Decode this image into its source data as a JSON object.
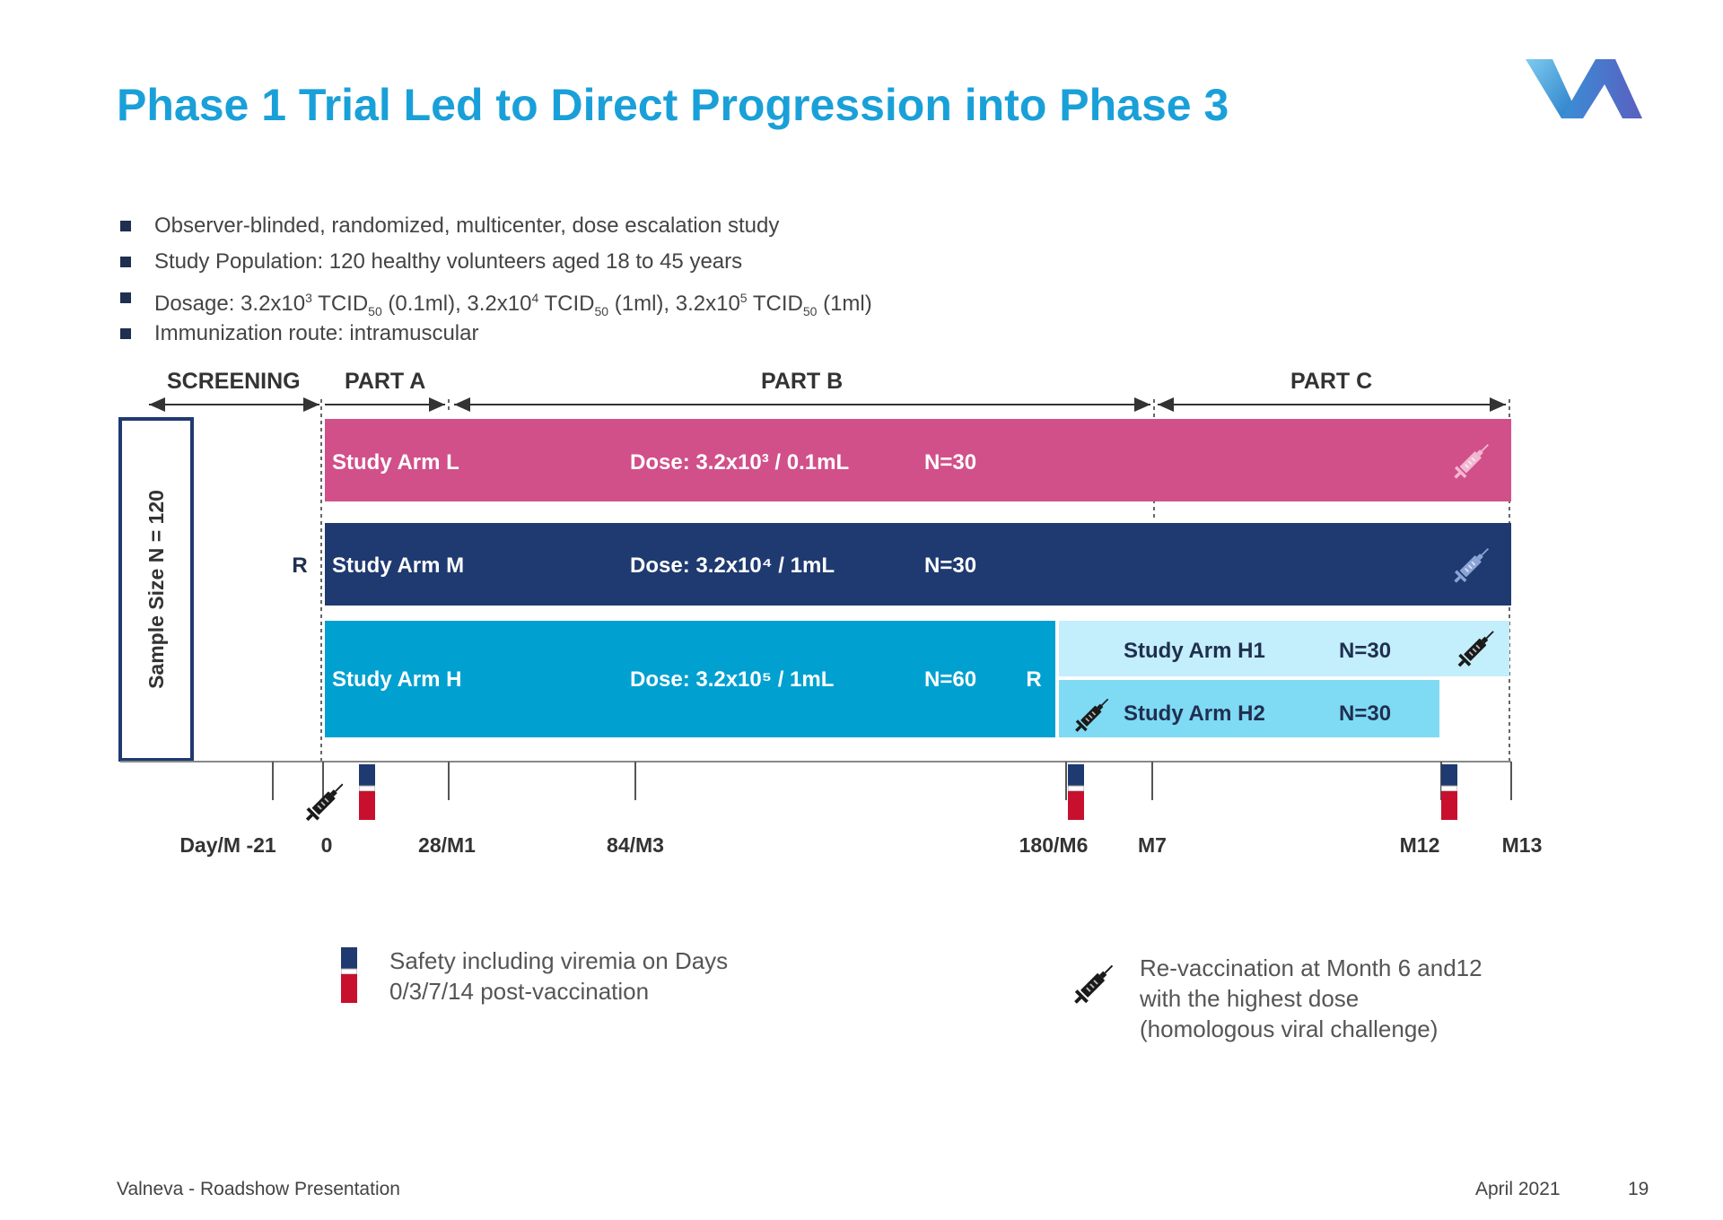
{
  "slide": {
    "title": "Phase 1 Trial Led to Direct Progression into Phase 3",
    "bullets": [
      {
        "html": "Observer-blinded, randomized, multicenter, dose escalation study"
      },
      {
        "html": "Study Population: 120 healthy volunteers aged 18 to 45 years"
      },
      {
        "html": "Dosage: 3.2x10<sup>3</sup> TCID<sub>50</sub> (0.1ml), 3.2x10<sup>4</sup> TCID<sub>50</sub> (1ml), 3.2x10<sup>5</sup> TCID<sub>50</sub> (1ml)"
      },
      {
        "html": "Immunization route: intramuscular"
      }
    ]
  },
  "phases": {
    "screening": "SCREENING",
    "part_a": "PART A",
    "part_b": "PART B",
    "part_c": "PART C"
  },
  "sample_size": "Sample Size N = 120",
  "randomization_label": "R",
  "arms": {
    "L": {
      "name": "Study Arm L",
      "dose": "Dose: 3.2x10³ / 0.1mL",
      "n": "N=30",
      "color": "#d1508a"
    },
    "M": {
      "name": "Study Arm M",
      "dose": "Dose: 3.2x10⁴ / 1mL",
      "n": "N=30",
      "color": "#1f3a70"
    },
    "H": {
      "name": "Study Arm H",
      "dose": "Dose: 3.2x10⁵ / 1mL",
      "n": "N=60",
      "r": "R",
      "color": "#00a0d0"
    },
    "H1": {
      "name": "Study Arm H1",
      "n": "N=30",
      "color": "#c3eefb"
    },
    "H2": {
      "name": "Study Arm H2",
      "n": "N=30",
      "color": "#7fdaf4"
    }
  },
  "timeline_ticks": [
    "Day/M -21",
    "0",
    "28/M1",
    "84/M3",
    "180/M6",
    "M7",
    "M12",
    "M13"
  ],
  "legend": {
    "safety_line1": "Safety including viremia on Days",
    "safety_line2": "0/3/7/14  post-vaccination",
    "revacc_line1": "Re-vaccination at Month 6 and12",
    "revacc_line2": "with the highest dose",
    "revacc_line3": "(homologous viral challenge)"
  },
  "footer": {
    "left": "Valneva - Roadshow Presentation",
    "date": "April 2021",
    "page": "19"
  },
  "icons": {
    "syringe": "syringe-icon",
    "blood_tube": "blood-tube-icon",
    "logo": "valneva-logo"
  }
}
